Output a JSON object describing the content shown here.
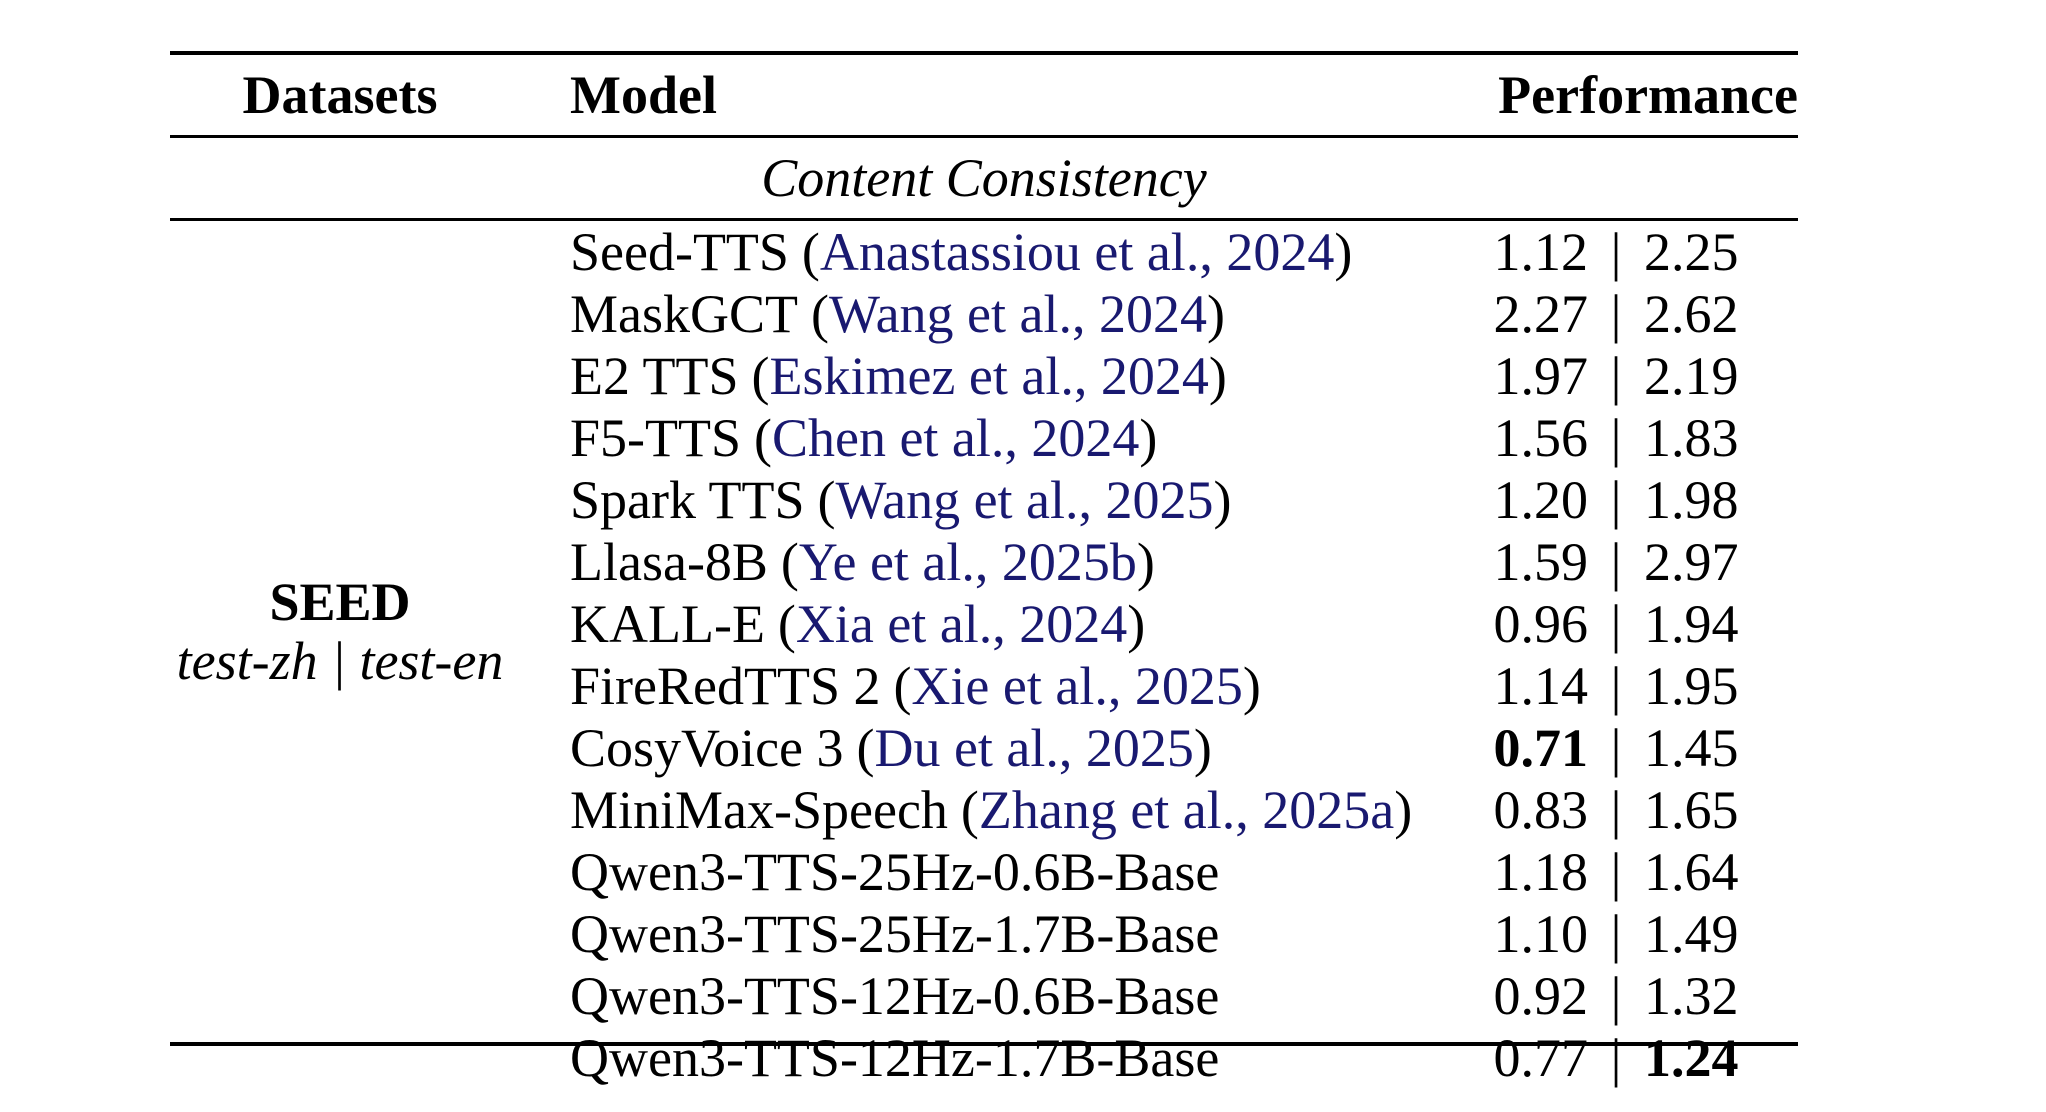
{
  "table": {
    "headers": {
      "datasets": "Datasets",
      "model": "Model",
      "performance": "Performance"
    },
    "section_title": "Content Consistency",
    "dataset": {
      "name": "SEED",
      "subsets": "test-zh | test-en"
    },
    "value_separator": "|",
    "colors": {
      "citation": "#191970",
      "text": "#000000",
      "background": "#ffffff"
    },
    "rows": [
      {
        "model": "Seed-TTS",
        "citation": "Anastassiou et al., 2024",
        "v1": "1.12",
        "v2": "2.25",
        "v1_bold": false,
        "v2_bold": false
      },
      {
        "model": "MaskGCT",
        "citation": "Wang et al., 2024",
        "v1": "2.27",
        "v2": "2.62",
        "v1_bold": false,
        "v2_bold": false
      },
      {
        "model": "E2 TTS",
        "citation": "Eskimez et al., 2024",
        "v1": "1.97",
        "v2": "2.19",
        "v1_bold": false,
        "v2_bold": false
      },
      {
        "model": "F5-TTS",
        "citation": "Chen et al., 2024",
        "v1": "1.56",
        "v2": "1.83",
        "v1_bold": false,
        "v2_bold": false
      },
      {
        "model": "Spark TTS",
        "citation": "Wang et al., 2025",
        "v1": "1.20",
        "v2": "1.98",
        "v1_bold": false,
        "v2_bold": false
      },
      {
        "model": "Llasa-8B",
        "citation": "Ye et al., 2025b",
        "v1": "1.59",
        "v2": "2.97",
        "v1_bold": false,
        "v2_bold": false
      },
      {
        "model": "KALL-E",
        "citation": "Xia et al., 2024",
        "v1": "0.96",
        "v2": "1.94",
        "v1_bold": false,
        "v2_bold": false
      },
      {
        "model": "FireRedTTS 2",
        "citation": "Xie et al., 2025",
        "v1": "1.14",
        "v2": "1.95",
        "v1_bold": false,
        "v2_bold": false
      },
      {
        "model": "CosyVoice 3",
        "citation": "Du et al., 2025",
        "v1": "0.71",
        "v2": "1.45",
        "v1_bold": true,
        "v2_bold": false
      },
      {
        "model": "MiniMax-Speech",
        "citation": "Zhang et al., 2025a",
        "v1": "0.83",
        "v2": "1.65",
        "v1_bold": false,
        "v2_bold": false
      },
      {
        "model": "Qwen3-TTS-25Hz-0.6B-Base",
        "citation": null,
        "v1": "1.18",
        "v2": "1.64",
        "v1_bold": false,
        "v2_bold": false
      },
      {
        "model": "Qwen3-TTS-25Hz-1.7B-Base",
        "citation": null,
        "v1": "1.10",
        "v2": "1.49",
        "v1_bold": false,
        "v2_bold": false
      },
      {
        "model": "Qwen3-TTS-12Hz-0.6B-Base",
        "citation": null,
        "v1": "0.92",
        "v2": "1.32",
        "v1_bold": false,
        "v2_bold": false
      },
      {
        "model": "Qwen3-TTS-12Hz-1.7B-Base",
        "citation": null,
        "v1": "0.77",
        "v2": "1.24",
        "v1_bold": false,
        "v2_bold": true
      }
    ]
  }
}
